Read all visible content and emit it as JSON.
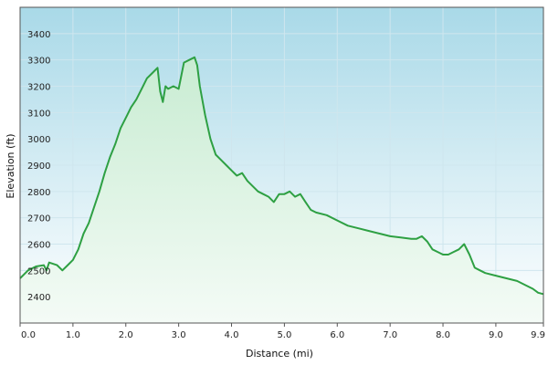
{
  "chart_data": {
    "type": "area",
    "title": "",
    "xlabel": "Distance  (mi)",
    "ylabel": "Elevation (ft)",
    "xlim": [
      0,
      9.9
    ],
    "ylim": [
      2300,
      3500
    ],
    "x_ticks": [
      0.0,
      1.0,
      2.0,
      3.0,
      4.0,
      5.0,
      6.0,
      7.0,
      8.0,
      9.0,
      9.9
    ],
    "x_tick_labels": [
      "0.0",
      "1.0",
      "2.0",
      "3.0",
      "4.0",
      "5.0",
      "6.0",
      "7.0",
      "8.0",
      "9.0",
      "9.9"
    ],
    "y_ticks": [
      2400,
      2500,
      2600,
      2700,
      2800,
      2900,
      3000,
      3100,
      3200,
      3300,
      3400
    ],
    "y_tick_labels": [
      "2400",
      "2500",
      "2600",
      "2700",
      "2800",
      "2900",
      "3000",
      "3100",
      "3200",
      "3300",
      "3400"
    ],
    "grid": true,
    "colors": {
      "line": "#2ea043",
      "fill_top": "#c8ecd2",
      "fill_bottom": "#f4fbf6",
      "bg_top": "#a9d9e8",
      "bg_bottom": "#ffffff",
      "grid": "#cfe6ee"
    },
    "series": [
      {
        "x": [
          0.0,
          0.15,
          0.3,
          0.45,
          0.5,
          0.55,
          0.7,
          0.8,
          0.9,
          1.0,
          1.1,
          1.2,
          1.3,
          1.4,
          1.5,
          1.6,
          1.7,
          1.8,
          1.9,
          2.0,
          2.1,
          2.2,
          2.3,
          2.4,
          2.5,
          2.6,
          2.65,
          2.7,
          2.75,
          2.8,
          2.9,
          3.0,
          3.1,
          3.2,
          3.3,
          3.35,
          3.4,
          3.5,
          3.6,
          3.7,
          3.8,
          3.9,
          4.0,
          4.1,
          4.2,
          4.3,
          4.4,
          4.5,
          4.6,
          4.7,
          4.8,
          4.9,
          5.0,
          5.1,
          5.2,
          5.3,
          5.4,
          5.5,
          5.6,
          5.8,
          6.0,
          6.2,
          6.4,
          6.6,
          6.8,
          7.0,
          7.2,
          7.4,
          7.5,
          7.6,
          7.7,
          7.8,
          7.9,
          8.0,
          8.1,
          8.2,
          8.3,
          8.4,
          8.5,
          8.6,
          8.7,
          8.8,
          9.0,
          9.2,
          9.4,
          9.6,
          9.7,
          9.8,
          9.9
        ],
        "y": [
          2470,
          2500,
          2515,
          2520,
          2500,
          2530,
          2520,
          2500,
          2520,
          2540,
          2580,
          2640,
          2680,
          2740,
          2800,
          2870,
          2930,
          2980,
          3040,
          3080,
          3120,
          3150,
          3190,
          3230,
          3250,
          3270,
          3180,
          3140,
          3200,
          3190,
          3200,
          3190,
          3290,
          3300,
          3310,
          3280,
          3200,
          3090,
          3000,
          2940,
          2920,
          2900,
          2880,
          2860,
          2870,
          2840,
          2820,
          2800,
          2790,
          2780,
          2760,
          2790,
          2790,
          2800,
          2780,
          2790,
          2760,
          2730,
          2720,
          2710,
          2690,
          2670,
          2660,
          2650,
          2640,
          2630,
          2625,
          2620,
          2620,
          2630,
          2610,
          2580,
          2570,
          2560,
          2560,
          2570,
          2580,
          2600,
          2560,
          2510,
          2500,
          2490,
          2480,
          2470,
          2460,
          2440,
          2430,
          2415,
          2410
        ]
      }
    ]
  }
}
